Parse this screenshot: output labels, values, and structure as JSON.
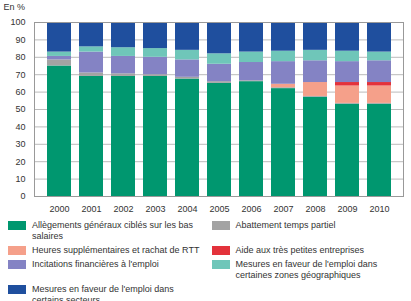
{
  "chart_data": {
    "type": "bar",
    "stacked": true,
    "grid": true,
    "y_label": "En %",
    "categories": [
      "2000",
      "2001",
      "2002",
      "2003",
      "2004",
      "2005",
      "2006",
      "2007",
      "2008",
      "2009",
      "2010"
    ],
    "ylim": [
      0,
      100
    ],
    "yticks": [
      0,
      10,
      20,
      30,
      40,
      50,
      60,
      70,
      80,
      90,
      100
    ],
    "legend": "bottom",
    "series": [
      {
        "name": "Allègements généraux ciblés sur les bas salaires",
        "color": "#00976f",
        "values": [
          75,
          69,
          69,
          69,
          67.5,
          65,
          66,
          62,
          57,
          53,
          53
        ]
      },
      {
        "name": "Abattement temps partiel",
        "color": "#a3a3a3",
        "values": [
          3.5,
          2,
          1.5,
          1,
          1,
          1,
          0.5,
          0.5,
          0.5,
          0.5,
          0.5
        ]
      },
      {
        "name": "Heures supplémentaires et rachat de RTT",
        "color": "#f5a08a",
        "values": [
          0,
          0,
          0,
          0,
          0,
          0,
          0,
          2,
          8,
          10,
          10
        ]
      },
      {
        "name": "Aide aux très petites entreprises",
        "color": "#e3323b",
        "values": [
          0,
          0,
          0,
          0,
          0,
          0,
          0,
          0,
          0,
          2,
          2
        ]
      },
      {
        "name": "Incitations financières à l'emploi",
        "color": "#8483c4",
        "values": [
          2,
          12,
          10,
          10,
          10,
          10,
          10.5,
          13,
          12.5,
          12,
          12.5
        ]
      },
      {
        "name": "Mesures en faveur de l'emploi dans certaines zones géographiques",
        "color": "#6fc6b9",
        "values": [
          2.5,
          3,
          5,
          5,
          5.5,
          6,
          6,
          6,
          6,
          6,
          5
        ]
      },
      {
        "name": "Mesures en faveur de l'emploi dans certains secteurs",
        "color": "#1f4f9e",
        "values": [
          17,
          14,
          14.5,
          15,
          16,
          18,
          17,
          16.5,
          16,
          16.5,
          17
        ]
      }
    ]
  }
}
